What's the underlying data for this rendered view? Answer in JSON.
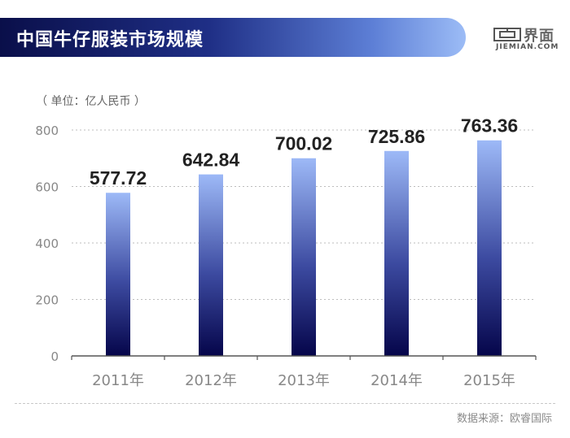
{
  "header": {
    "title": "中国牛仔服装市场规模",
    "logo_cn": "界面",
    "logo_en": "JIEMIAN.COM"
  },
  "unit_label": "（ 单位：亿人民币 ）",
  "source": "数据来源：欧睿国际",
  "colors": {
    "bar_top": "#9db9f7",
    "bar_bottom": "#05054a",
    "axis": "#555555",
    "grid": "#bdbdbd",
    "tick_text": "#888888",
    "value_text": "#222222"
  },
  "chart_data": {
    "type": "bar",
    "categories": [
      "2011年",
      "2012年",
      "2013年",
      "2014年",
      "2015年"
    ],
    "values": [
      577.72,
      642.84,
      700.02,
      725.86,
      763.36
    ],
    "value_labels": [
      "577.72",
      "642.84",
      "700.02",
      "725.86",
      "763.36"
    ],
    "title": "中国牛仔服装市场规模",
    "ylabel": "（ 单位：亿人民币 ）",
    "ylim": [
      0,
      800
    ],
    "yticks": [
      0,
      200,
      400,
      600,
      800
    ],
    "grid": true
  }
}
